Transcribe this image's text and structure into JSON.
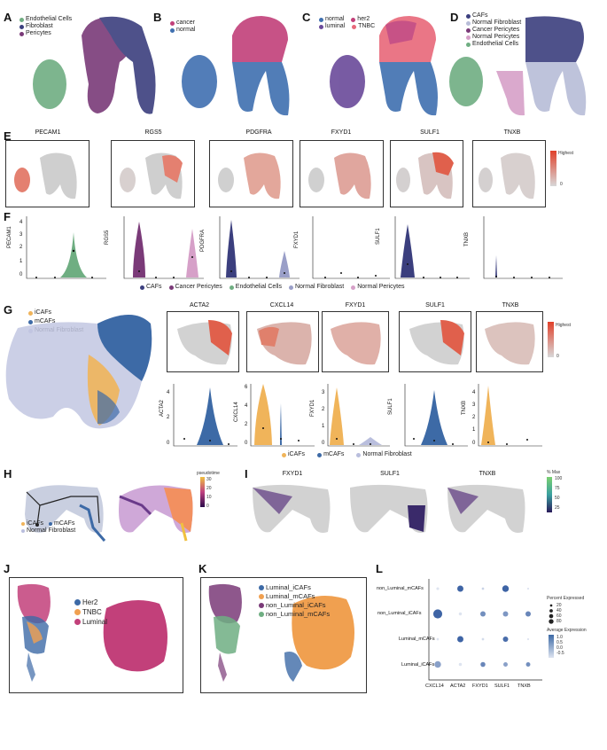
{
  "panels": {
    "A": {
      "label": "A",
      "legend": [
        {
          "name": "Endothelial Cells",
          "color": "#6fae82"
        },
        {
          "name": "Fibroblast",
          "color": "#3b3f7e"
        },
        {
          "name": "Pericytes",
          "color": "#7a3a78"
        }
      ]
    },
    "B": {
      "label": "B",
      "legend": [
        {
          "name": "cancer",
          "color": "#c2407a"
        },
        {
          "name": "normal",
          "color": "#3f6fb0"
        }
      ]
    },
    "C": {
      "label": "C",
      "legend": [
        {
          "name": "normal",
          "color": "#3f6fb0"
        },
        {
          "name": "her2",
          "color": "#c2407a"
        },
        {
          "name": "luminal",
          "color": "#6a4a9a"
        },
        {
          "name": "TNBC",
          "color": "#e8687a"
        }
      ]
    },
    "D": {
      "label": "D",
      "legend": [
        {
          "name": "CAFs",
          "color": "#3b3f7e"
        },
        {
          "name": "Normal Fibroblast",
          "color": "#b8bdd8"
        },
        {
          "name": "Cancer Pericytes",
          "color": "#7a3a78"
        },
        {
          "name": "Normal Pericytes",
          "color": "#d6a0c8"
        },
        {
          "name": "Endothelial Cells",
          "color": "#6fae82"
        }
      ]
    },
    "E": {
      "label": "E",
      "genes": [
        "PECAM1",
        "RGS5",
        "PDGFRA",
        "FXYD1",
        "SULF1",
        "TNXB"
      ],
      "scale_high": "Highest",
      "scale_low": "0"
    },
    "F": {
      "label": "F",
      "genes": [
        "PECAM1",
        "RGS5",
        "PDGFRA",
        "FXYD1",
        "SULF1",
        "TNXB"
      ],
      "yticks": [
        "4",
        "3",
        "2",
        "1",
        "0"
      ],
      "legend": [
        {
          "name": "CAFs",
          "color": "#3b3f7e"
        },
        {
          "name": "Cancer Pericytes",
          "color": "#7a3a78"
        },
        {
          "name": "Endothelial Cells",
          "color": "#6fae82"
        },
        {
          "name": "Normal Fibroblast",
          "color": "#9a9fc8"
        },
        {
          "name": "Normal Pericytes",
          "color": "#d6a0c8"
        }
      ]
    },
    "G": {
      "label": "G",
      "legend": [
        {
          "name": "iCAFs",
          "color": "#f0b45a"
        },
        {
          "name": "mCAFs",
          "color": "#3d6aa6"
        },
        {
          "name": "Normal Fibroblast",
          "color": "#b9bedd"
        }
      ],
      "genes": [
        "ACTA2",
        "CXCL14",
        "FXYD1",
        "SULF1",
        "TNXB"
      ],
      "scale_high": "Highest",
      "scale_low": "0",
      "yticks_a": [
        "4",
        "2",
        "0"
      ],
      "yticks_b": [
        "6",
        "4",
        "2",
        "0"
      ],
      "yticks_c": [
        "3",
        "2",
        "1",
        "0"
      ],
      "yticks_d": [
        "4",
        "3",
        "2",
        "1",
        "0"
      ]
    },
    "H": {
      "label": "H",
      "legend": [
        {
          "name": "iCAFs",
          "color": "#f0b45a"
        },
        {
          "name": "mCAFs",
          "color": "#3d6aa6"
        },
        {
          "name": "Normal Fibroblast",
          "color": "#b9bedd"
        }
      ],
      "scale_title": "pseudotime",
      "scale_ticks": [
        "30",
        "20",
        "10",
        "0"
      ]
    },
    "I": {
      "label": "I",
      "genes": [
        "FXYD1",
        "SULF1",
        "TNXB"
      ],
      "scale_title": "% Max",
      "scale_ticks": [
        "100",
        "75",
        "50",
        "25"
      ]
    },
    "J": {
      "label": "J",
      "legend": [
        {
          "name": "Her2",
          "color": "#3d6aa6"
        },
        {
          "name": "TNBC",
          "color": "#f0a050"
        },
        {
          "name": "Luminal",
          "color": "#c2407a"
        }
      ]
    },
    "K": {
      "label": "K",
      "legend": [
        {
          "name": "Luminal_iCAFs",
          "color": "#3d6aa6"
        },
        {
          "name": "Luminal_mCAFs",
          "color": "#f0a050"
        },
        {
          "name": "non_Luminal_iCAFs",
          "color": "#7a3a78"
        },
        {
          "name": "non_Luminal_mCAFs",
          "color": "#6fae82"
        }
      ]
    },
    "L": {
      "label": "L",
      "rows": [
        "non_Luminal_mCAFs",
        "non_Luminal_iCAFs",
        "Luminal_mCAFs",
        "Luminal_iCAFs"
      ],
      "cols": [
        "CXCL14",
        "ACTA2",
        "FXYD1",
        "SULF1",
        "TNXB"
      ],
      "pct_title": "Percent Expressed",
      "pct_ticks": [
        "20",
        "40",
        "60",
        "80"
      ],
      "avg_title": "Average Expression",
      "avg_ticks": [
        "1.0",
        "0.5",
        "0.0",
        "-0.5"
      ]
    }
  },
  "chart_data": {
    "type": "dot",
    "title": "",
    "rows": [
      "non_Luminal_mCAFs",
      "non_Luminal_iCAFs",
      "Luminal_mCAFs",
      "Luminal_iCAFs"
    ],
    "cols": [
      "CXCL14",
      "ACTA2",
      "FXYD1",
      "SULF1",
      "TNXB"
    ],
    "size": [
      [
        8,
        40,
        6,
        45,
        4
      ],
      [
        85,
        10,
        30,
        30,
        30
      ],
      [
        6,
        40,
        6,
        30,
        4
      ],
      [
        45,
        10,
        25,
        20,
        20
      ]
    ],
    "color": [
      [
        -0.5,
        1.0,
        -0.3,
        1.0,
        -0.5
      ],
      [
        1.0,
        -0.5,
        0.5,
        0.4,
        0.6
      ],
      [
        -0.5,
        1.0,
        -0.4,
        0.9,
        -0.5
      ],
      [
        0.3,
        -0.5,
        0.6,
        0.3,
        0.5
      ]
    ]
  }
}
